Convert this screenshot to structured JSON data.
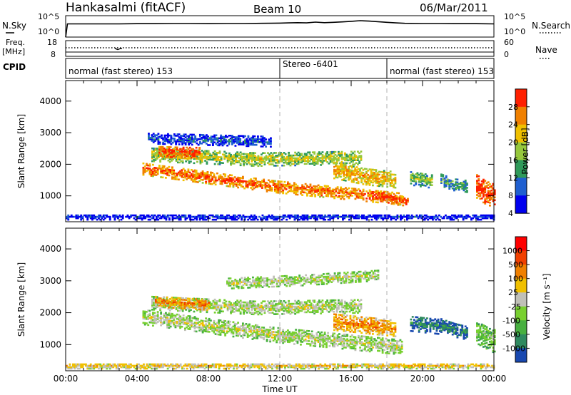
{
  "header": {
    "station": "Hankasalmi (fitACF)",
    "beam": "Beam 10",
    "date": "06/Mar/2011"
  },
  "nsky": {
    "label": "N.Sky",
    "right_label": "N.Search",
    "tick_top": "10^5",
    "tick_bottom": "10^0",
    "right_tick_top": "10^5",
    "right_tick_bottom": "10^0",
    "trace_hours": [
      0,
      0.1,
      1,
      2,
      3,
      4,
      5,
      6,
      7,
      8,
      9,
      10,
      11,
      12,
      12.5,
      13,
      13.5,
      14,
      14.5,
      15,
      15.5,
      16,
      16.5,
      17,
      17.5,
      18,
      18.5,
      19,
      20,
      21,
      22,
      23,
      24
    ],
    "trace_log": [
      0,
      3.3,
      3.3,
      3.3,
      3.3,
      3.35,
      3.35,
      3.4,
      3.4,
      3.35,
      3.4,
      3.4,
      3.45,
      3.5,
      3.55,
      3.6,
      3.55,
      3.75,
      3.6,
      3.7,
      3.8,
      3.95,
      4.1,
      4.0,
      3.85,
      3.7,
      3.55,
      3.45,
      3.4,
      3.4,
      3.35,
      3.35,
      3.3
    ]
  },
  "freq": {
    "label_top": "Freq.",
    "label_unit": "[MHz]",
    "tick_top": "18",
    "tick_bottom": "8",
    "right_label": "Nave",
    "right_tick_top": "60",
    "right_tick_bottom": "0",
    "dotted_line_mhz": 12.5,
    "dip_hours": [
      2.8,
      3.2
    ]
  },
  "cpid": {
    "label": "CPID",
    "segments": [
      {
        "label": "normal (fast stereo) 153",
        "start_hour": 0,
        "end_hour": 12
      },
      {
        "label": "Stereo -6401",
        "start_hour": 12,
        "end_hour": 18
      },
      {
        "label": "normal (fast stereo) 153",
        "start_hour": 18,
        "end_hour": 24
      }
    ]
  },
  "chart_data": [
    {
      "type": "heatmap",
      "name": "power",
      "ylabel": "Slant Range [km]",
      "yticks": [
        1000,
        2000,
        3000,
        4000
      ],
      "ylim": [
        180,
        4650
      ],
      "xlim": [
        0,
        24
      ],
      "colorbar_label": "Power [dB]",
      "colorbar_ticks": [
        "28",
        "24",
        "20",
        "16",
        "12",
        "8",
        "4"
      ],
      "colorbar_colors": [
        "#0000ee",
        "#1f5fd0",
        "#2f9a5a",
        "#96c83c",
        "#f0c000",
        "#f08000",
        "#ff2000"
      ],
      "dashed_hours": [
        12,
        18
      ],
      "echo_bands": [
        {
          "t0": 4.3,
          "t1": 18.8,
          "r_start": 1850,
          "r_mid": 1300,
          "r_end": 900,
          "thick": 200,
          "level": 5.4
        },
        {
          "t0": 4.8,
          "t1": 16.5,
          "r_start": 2300,
          "r_mid": 2150,
          "r_end": 2200,
          "thick": 220,
          "level": 3.5
        },
        {
          "t0": 5.2,
          "t1": 7.5,
          "r_start": 2380,
          "r_mid": 2360,
          "r_end": 2350,
          "thick": 160,
          "level": 6.0
        },
        {
          "t0": 4.6,
          "t1": 11.5,
          "r_start": 2800,
          "r_mid": 2750,
          "r_end": 2700,
          "thick": 160,
          "level": 1.2
        },
        {
          "t0": 15.0,
          "t1": 18.5,
          "r_start": 1800,
          "r_mid": 1600,
          "r_end": 1500,
          "thick": 260,
          "level": 4.5
        },
        {
          "t0": 17.5,
          "t1": 19.2,
          "r_start": 1000,
          "r_mid": 850,
          "r_end": 800,
          "thick": 140,
          "level": 6.2
        },
        {
          "t0": 19.3,
          "t1": 20.5,
          "r_start": 1550,
          "r_mid": 1500,
          "r_end": 1450,
          "thick": 220,
          "level": 3.0
        },
        {
          "t0": 21.0,
          "t1": 22.5,
          "r_start": 1500,
          "r_mid": 1350,
          "r_end": 1300,
          "thick": 200,
          "level": 2.2
        },
        {
          "t0": 23.0,
          "t1": 24.0,
          "r_start": 1300,
          "r_mid": 1100,
          "r_end": 1000,
          "thick": 380,
          "level": 6.1
        },
        {
          "t0": 0.0,
          "t1": 24.0,
          "r_start": 320,
          "r_mid": 320,
          "r_end": 320,
          "thick": 90,
          "level": 0.5
        }
      ]
    },
    {
      "type": "heatmap",
      "name": "velocity",
      "ylabel": "Slant Range [km]",
      "yticks": [
        1000,
        2000,
        3000,
        4000
      ],
      "ylim": [
        180,
        4650
      ],
      "xlim": [
        0,
        24
      ],
      "xticks": [
        "00:00",
        "04:00",
        "08:00",
        "12:00",
        "16:00",
        "20:00",
        "00:00"
      ],
      "xlabel": "Time UT",
      "colorbar_label": "Velocity [m s⁻¹]",
      "colorbar_ticks": [
        "1000",
        "500",
        "100",
        "25",
        "-25",
        "-100",
        "-500",
        "-1000"
      ],
      "colorbar_colors": [
        "#1848b0",
        "#2f8a60",
        "#48b040",
        "#78d030",
        "#c0c0b8",
        "#f0c000",
        "#f08000",
        "#f04000",
        "#ff0000"
      ],
      "dashed_hours": [
        12,
        18
      ],
      "echo_bands": [
        {
          "t0": 4.3,
          "t1": 18.8,
          "r_start": 1850,
          "r_mid": 1300,
          "r_end": 900,
          "thick": 230,
          "level": 4
        },
        {
          "t0": 4.8,
          "t1": 16.5,
          "r_start": 2300,
          "r_mid": 2150,
          "r_end": 2200,
          "thick": 220,
          "level": 4
        },
        {
          "t0": 5.0,
          "t1": 8.0,
          "r_start": 2350,
          "r_mid": 2300,
          "r_end": 2250,
          "thick": 180,
          "level": 6
        },
        {
          "t0": 9.0,
          "t1": 17.5,
          "r_start": 2900,
          "r_mid": 3000,
          "r_end": 3150,
          "thick": 160,
          "level": 4
        },
        {
          "t0": 15.0,
          "t1": 18.5,
          "r_start": 1700,
          "r_mid": 1600,
          "r_end": 1500,
          "thick": 260,
          "level": 6
        },
        {
          "t0": 19.3,
          "t1": 21.0,
          "r_start": 1650,
          "r_mid": 1600,
          "r_end": 1550,
          "thick": 240,
          "level": 1
        },
        {
          "t0": 21.0,
          "t1": 22.5,
          "r_start": 1600,
          "r_mid": 1450,
          "r_end": 1350,
          "thick": 220,
          "level": 1
        },
        {
          "t0": 23.0,
          "t1": 24.0,
          "r_start": 1400,
          "r_mid": 1250,
          "r_end": 1100,
          "thick": 380,
          "level": 3
        },
        {
          "t0": 0.0,
          "t1": 24.0,
          "r_start": 320,
          "r_mid": 320,
          "r_end": 320,
          "thick": 90,
          "level": 5
        }
      ]
    }
  ]
}
